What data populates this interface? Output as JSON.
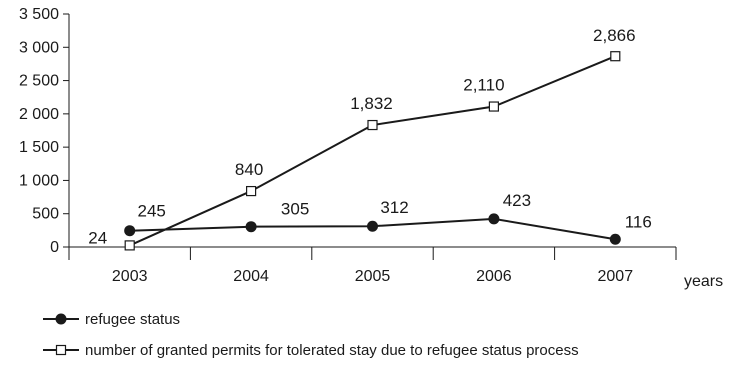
{
  "chart_data": {
    "type": "line",
    "title": "",
    "xlabel": "years",
    "ylabel": "",
    "categories": [
      "2003",
      "2004",
      "2005",
      "2006",
      "2007"
    ],
    "ylim": [
      0,
      3500
    ],
    "y_ticks": [
      0,
      500,
      1000,
      1500,
      2000,
      2500,
      3000,
      3500
    ],
    "y_tick_labels": [
      "0",
      "500",
      "1 000",
      "1 500",
      "2 000",
      "2 500",
      "3 000",
      "3 500"
    ],
    "grid": false,
    "legend_position": "bottom-left",
    "series": [
      {
        "name": "refugee status",
        "marker": "filled-circle",
        "color": "#1a1a1a",
        "values": [
          245,
          305,
          312,
          423,
          116
        ],
        "labels": [
          "245",
          "305",
          "312",
          "423",
          "116"
        ]
      },
      {
        "name": "number of granted permits for tolerated stay due to refugee status process",
        "marker": "open-square",
        "color": "#1a1a1a",
        "values": [
          24,
          840,
          1832,
          2110,
          2866
        ],
        "labels": [
          "24",
          "840",
          "1,832",
          "2,110",
          "2,866"
        ]
      }
    ]
  }
}
